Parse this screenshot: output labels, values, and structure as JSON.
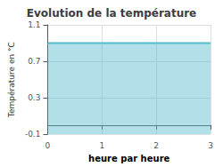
{
  "chart_data": {
    "type": "area",
    "title": "Evolution de la température",
    "xlabel": "heure par heure",
    "ylabel": "Température en °C",
    "x": [
      0,
      3
    ],
    "values": [
      0.9,
      0.9
    ],
    "color": "#55bbcc",
    "xlim": [
      0,
      3
    ],
    "xticks": [
      0,
      1,
      2,
      3
    ],
    "ylim": [
      -0.1,
      1.1
    ],
    "yticks": [
      -0.1,
      0.3,
      0.7,
      1.1
    ],
    "grid": true
  }
}
